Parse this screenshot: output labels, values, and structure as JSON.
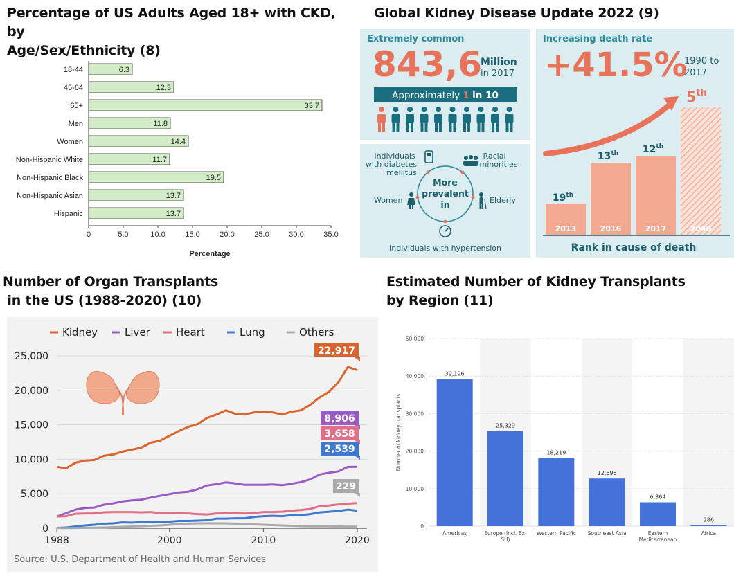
{
  "panel1": {
    "title_line1": "Percentage of US Adults Aged 18+ with CKD, by",
    "title_line2": "Age/Sex/Ethnicity (8)",
    "chart_data": {
      "type": "bar",
      "orientation": "horizontal",
      "categories": [
        "18-44",
        "45-64",
        "65+",
        "Men",
        "Women",
        "Non-Hispanic White",
        "Non-Hispanic Black",
        "Non-Hispanic Asian",
        "Hispanic"
      ],
      "values": [
        6.3,
        12.3,
        33.7,
        11.8,
        14.4,
        11.7,
        19.5,
        13.7,
        13.7
      ],
      "xlabel": "Percentage",
      "xlim": [
        0,
        35
      ],
      "xticks": [
        "0",
        "5.0",
        "10.0",
        "15.0",
        "20.0",
        "25.0",
        "30.0",
        "35.0"
      ],
      "bar_color": "#d4edc9"
    }
  },
  "panel2": {
    "title": "Global Kidney Disease Update 2022 (9)",
    "common_heading": "Extremely common",
    "common_value": "843,6",
    "common_unit1": "Million",
    "common_unit2": "in 2017",
    "approx_pre": "Approximately",
    "approx_num": "1",
    "approx_post": "in 10",
    "death_heading": "Increasing death rate",
    "death_value": "+41.5%",
    "death_range1": "1990 to",
    "death_range2": "2017",
    "center_text1": "More",
    "center_text2": "prevalent",
    "center_text3": "in",
    "diabetes1": "Individuals",
    "diabetes2": "with diabetes",
    "diabetes3": "mellitus",
    "racial1": "Racial",
    "racial2": "minorities",
    "women": "Women",
    "elderly": "Elderly",
    "hypertension": "Individuals with hypertension",
    "rank_caption": "Rank in cause of death",
    "ranks": [
      {
        "year": "2013",
        "rank": "19",
        "suffix": "th",
        "value": 19
      },
      {
        "year": "2016",
        "rank": "13",
        "suffix": "th",
        "value": 13
      },
      {
        "year": "2017",
        "rank": "12",
        "suffix": "th",
        "value": 12
      },
      {
        "year": "2040",
        "rank": "5",
        "suffix": "th",
        "value": 5
      }
    ],
    "colors": {
      "panel_bg": "#dbedf1",
      "accent": "#e8735a",
      "teal": "#2c8a9a",
      "dark_teal": "#1b5f6d"
    }
  },
  "panel3": {
    "title_line1": "Number of Organ Transplants",
    "title_line2": " in the US (1988-2020) (10)",
    "source": "Source: U.S. Department of Health and Human Services",
    "chart_data": {
      "type": "line",
      "x": [
        1988,
        1989,
        1990,
        1991,
        1992,
        1993,
        1994,
        1995,
        1996,
        1997,
        1998,
        1999,
        2000,
        2001,
        2002,
        2003,
        2004,
        2005,
        2006,
        2007,
        2008,
        2009,
        2010,
        2011,
        2012,
        2013,
        2014,
        2015,
        2016,
        2017,
        2018,
        2019,
        2020
      ],
      "xticks": [
        "1988",
        "2000",
        "2010",
        "2020"
      ],
      "yticks": [
        "0",
        "5,000",
        "10,000",
        "15,000",
        "20,000",
        "25,000"
      ],
      "ylim": [
        0,
        26500
      ],
      "series": [
        {
          "name": "Kidney",
          "color": "#d9642c",
          "end_label": "22,917",
          "values": [
            8900,
            8700,
            9500,
            9800,
            9900,
            10500,
            10700,
            11100,
            11400,
            11700,
            12400,
            12700,
            13400,
            14100,
            14700,
            15100,
            16000,
            16500,
            17100,
            16600,
            16500,
            16800,
            16900,
            16800,
            16500,
            16900,
            17100,
            17900,
            19000,
            19800,
            21200,
            23400,
            22917
          ]
        },
        {
          "name": "Liver",
          "color": "#9b59c4",
          "end_label": "8,906",
          "values": [
            1700,
            2200,
            2700,
            2950,
            3000,
            3400,
            3600,
            3900,
            4050,
            4150,
            4450,
            4700,
            4950,
            5200,
            5300,
            5650,
            6200,
            6400,
            6650,
            6500,
            6300,
            6300,
            6300,
            6350,
            6250,
            6450,
            6700,
            7100,
            7800,
            8050,
            8250,
            8900,
            8906
          ]
        },
        {
          "name": "Heart",
          "color": "#e0708a",
          "end_label": "3,658",
          "values": [
            1700,
            1750,
            2100,
            2150,
            2150,
            2300,
            2350,
            2350,
            2350,
            2300,
            2350,
            2200,
            2200,
            2200,
            2150,
            2050,
            2000,
            2150,
            2200,
            2200,
            2150,
            2200,
            2350,
            2350,
            2400,
            2550,
            2650,
            2800,
            3200,
            3300,
            3450,
            3550,
            3658
          ]
        },
        {
          "name": "Lung",
          "color": "#3f7ad0",
          "end_label": "2,539",
          "values": [
            50,
            100,
            250,
            400,
            500,
            650,
            700,
            850,
            800,
            900,
            850,
            900,
            950,
            1050,
            1050,
            1100,
            1150,
            1400,
            1400,
            1450,
            1450,
            1650,
            1750,
            1800,
            1750,
            1900,
            1900,
            2050,
            2300,
            2400,
            2500,
            2700,
            2539
          ]
        },
        {
          "name": "Others",
          "color": "#aaaaaa",
          "end_label": "229",
          "values": [
            20,
            30,
            40,
            60,
            80,
            100,
            150,
            200,
            250,
            300,
            350,
            400,
            500,
            600,
            650,
            700,
            700,
            700,
            700,
            650,
            600,
            550,
            500,
            450,
            400,
            350,
            300,
            280,
            270,
            260,
            250,
            240,
            229
          ]
        }
      ]
    }
  },
  "panel4": {
    "title_line1": "Estimated Number of Kidney Transplants",
    "title_line2": "by Region (11)",
    "chart_data": {
      "type": "bar",
      "categories": [
        [
          "Americas"
        ],
        [
          "Europe (incl. Ex-",
          "SU)"
        ],
        [
          "Western Pacific"
        ],
        [
          "Southeast Asia"
        ],
        [
          "Eastern",
          "Mediterranean"
        ],
        [
          "Africa"
        ]
      ],
      "values": [
        39196,
        25329,
        18219,
        12696,
        6364,
        286
      ],
      "value_labels": [
        "39,196",
        "25,329",
        "18,219",
        "12,696",
        "6,364",
        "286"
      ],
      "ylabel": "Number of kidney transplants",
      "ylim": [
        0,
        50000
      ],
      "yticks": [
        "0",
        "10,000",
        "20,000",
        "30,000",
        "40,000",
        "50,000"
      ],
      "bar_color": "#4472d9"
    }
  }
}
